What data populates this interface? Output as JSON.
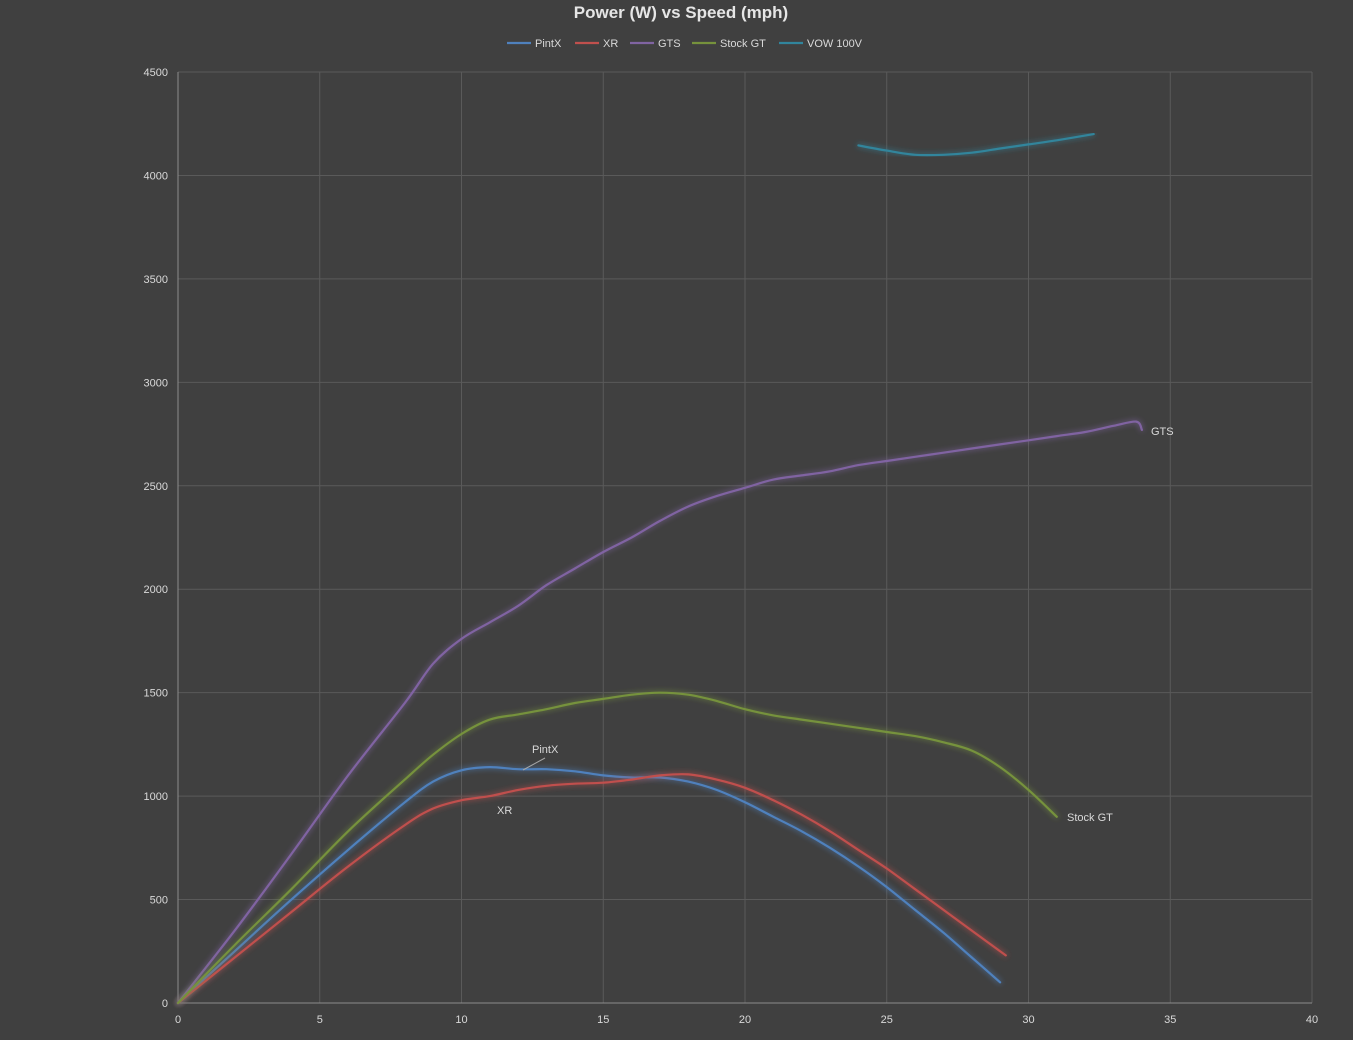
{
  "chart_data": {
    "type": "line",
    "title": "Power (W) vs Speed (mph)",
    "xlabel": "",
    "ylabel": "",
    "xlim": [
      0,
      40
    ],
    "ylim": [
      0,
      4500
    ],
    "x_ticks": [
      0,
      5,
      10,
      15,
      20,
      25,
      30,
      35,
      40
    ],
    "y_ticks": [
      0,
      500,
      1000,
      1500,
      2000,
      2500,
      3000,
      3500,
      4000,
      4500
    ],
    "grid": true,
    "legend_position": "top",
    "series": [
      {
        "name": "PintX",
        "color": "#4f81bd",
        "label": "PintX",
        "points": [
          [
            0,
            0
          ],
          [
            2,
            250
          ],
          [
            4,
            500
          ],
          [
            6,
            740
          ],
          [
            8,
            970
          ],
          [
            9,
            1070
          ],
          [
            10,
            1125
          ],
          [
            11,
            1140
          ],
          [
            12,
            1130
          ],
          [
            13,
            1130
          ],
          [
            14,
            1120
          ],
          [
            15,
            1100
          ],
          [
            16,
            1090
          ],
          [
            17,
            1090
          ],
          [
            18,
            1070
          ],
          [
            19,
            1030
          ],
          [
            20,
            970
          ],
          [
            21,
            900
          ],
          [
            22,
            830
          ],
          [
            23,
            750
          ],
          [
            24,
            660
          ],
          [
            25,
            560
          ],
          [
            26,
            450
          ],
          [
            27,
            340
          ],
          [
            28,
            220
          ],
          [
            29,
            100
          ]
        ]
      },
      {
        "name": "XR",
        "color": "#c0504d",
        "label": "XR",
        "points": [
          [
            0,
            0
          ],
          [
            2,
            220
          ],
          [
            4,
            440
          ],
          [
            6,
            660
          ],
          [
            8,
            860
          ],
          [
            9,
            940
          ],
          [
            10,
            980
          ],
          [
            11,
            1000
          ],
          [
            12,
            1030
          ],
          [
            13,
            1050
          ],
          [
            14,
            1060
          ],
          [
            15,
            1065
          ],
          [
            16,
            1080
          ],
          [
            17,
            1100
          ],
          [
            18,
            1105
          ],
          [
            19,
            1080
          ],
          [
            20,
            1040
          ],
          [
            21,
            980
          ],
          [
            22,
            910
          ],
          [
            23,
            830
          ],
          [
            24,
            740
          ],
          [
            25,
            650
          ],
          [
            26,
            550
          ],
          [
            27,
            450
          ],
          [
            28,
            350
          ],
          [
            29.2,
            230
          ]
        ]
      },
      {
        "name": "GTS",
        "color": "#8064a2",
        "label": "GTS",
        "points": [
          [
            0,
            0
          ],
          [
            2,
            350
          ],
          [
            4,
            720
          ],
          [
            6,
            1100
          ],
          [
            8,
            1450
          ],
          [
            9,
            1640
          ],
          [
            10,
            1760
          ],
          [
            11,
            1840
          ],
          [
            12,
            1920
          ],
          [
            13,
            2020
          ],
          [
            14,
            2100
          ],
          [
            15,
            2180
          ],
          [
            16,
            2250
          ],
          [
            17,
            2330
          ],
          [
            18,
            2400
          ],
          [
            19,
            2450
          ],
          [
            20,
            2490
          ],
          [
            21,
            2530
          ],
          [
            22,
            2550
          ],
          [
            23,
            2570
          ],
          [
            24,
            2600
          ],
          [
            25,
            2620
          ],
          [
            26,
            2640
          ],
          [
            27,
            2660
          ],
          [
            28,
            2680
          ],
          [
            29,
            2700
          ],
          [
            30,
            2720
          ],
          [
            31,
            2740
          ],
          [
            32,
            2760
          ],
          [
            33,
            2790
          ],
          [
            33.8,
            2810
          ],
          [
            34,
            2770
          ]
        ]
      },
      {
        "name": "Stock GT",
        "color": "#76923c",
        "label": "Stock GT",
        "points": [
          [
            0,
            0
          ],
          [
            2,
            280
          ],
          [
            4,
            550
          ],
          [
            6,
            830
          ],
          [
            8,
            1080
          ],
          [
            9,
            1200
          ],
          [
            10,
            1300
          ],
          [
            11,
            1370
          ],
          [
            12,
            1395
          ],
          [
            13,
            1420
          ],
          [
            14,
            1450
          ],
          [
            15,
            1470
          ],
          [
            16,
            1490
          ],
          [
            17,
            1500
          ],
          [
            18,
            1490
          ],
          [
            19,
            1460
          ],
          [
            20,
            1420
          ],
          [
            21,
            1390
          ],
          [
            22,
            1370
          ],
          [
            23,
            1350
          ],
          [
            24,
            1330
          ],
          [
            25,
            1310
          ],
          [
            26,
            1290
          ],
          [
            27,
            1260
          ],
          [
            28,
            1220
          ],
          [
            29,
            1140
          ],
          [
            30,
            1030
          ],
          [
            31,
            900
          ]
        ]
      },
      {
        "name": "VOW 100V",
        "color": "#31859c",
        "label": "",
        "points": [
          [
            24,
            4145
          ],
          [
            25,
            4120
          ],
          [
            26,
            4100
          ],
          [
            27,
            4100
          ],
          [
            28,
            4110
          ],
          [
            29,
            4130
          ],
          [
            30,
            4150
          ],
          [
            31,
            4170
          ],
          [
            32.3,
            4200
          ]
        ]
      }
    ]
  }
}
